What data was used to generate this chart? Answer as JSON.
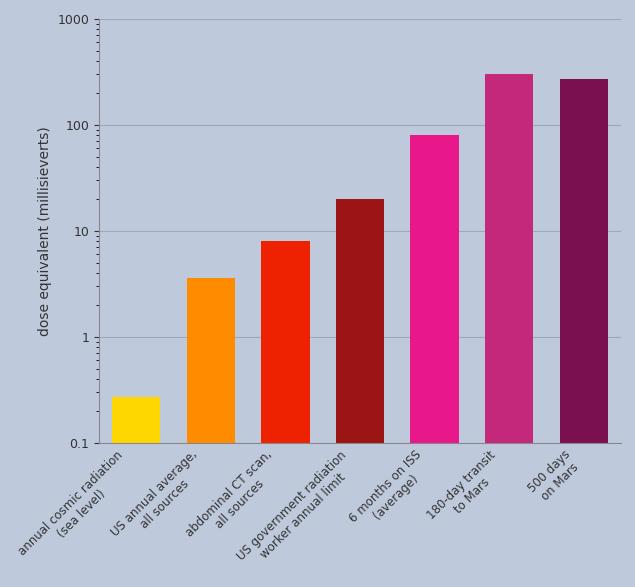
{
  "categories": [
    "annual cosmic radiation\n(sea level)",
    "US annual average,\nall sources",
    "abdominal CT scan,\nall sources",
    "US government radiation\nworker annual limit",
    "6 months on ISS\n(average)",
    "180-day transit\nto Mars",
    "500 days\non Mars"
  ],
  "values": [
    0.27,
    3.6,
    8.0,
    20.0,
    80.0,
    300.0,
    270.0
  ],
  "bar_colors": [
    "#FFD700",
    "#FF8C00",
    "#EE2200",
    "#9B1515",
    "#E8188A",
    "#C4287A",
    "#7A1050"
  ],
  "ylabel": "dose equivalent (millisieverts)",
  "ylim_min": 0.1,
  "ylim_max": 1000,
  "background_color": "#BFC9DC",
  "grid_color": "#9AAABB",
  "tick_label_fontsize": 8.5,
  "ylabel_fontsize": 10,
  "bar_width": 0.65
}
